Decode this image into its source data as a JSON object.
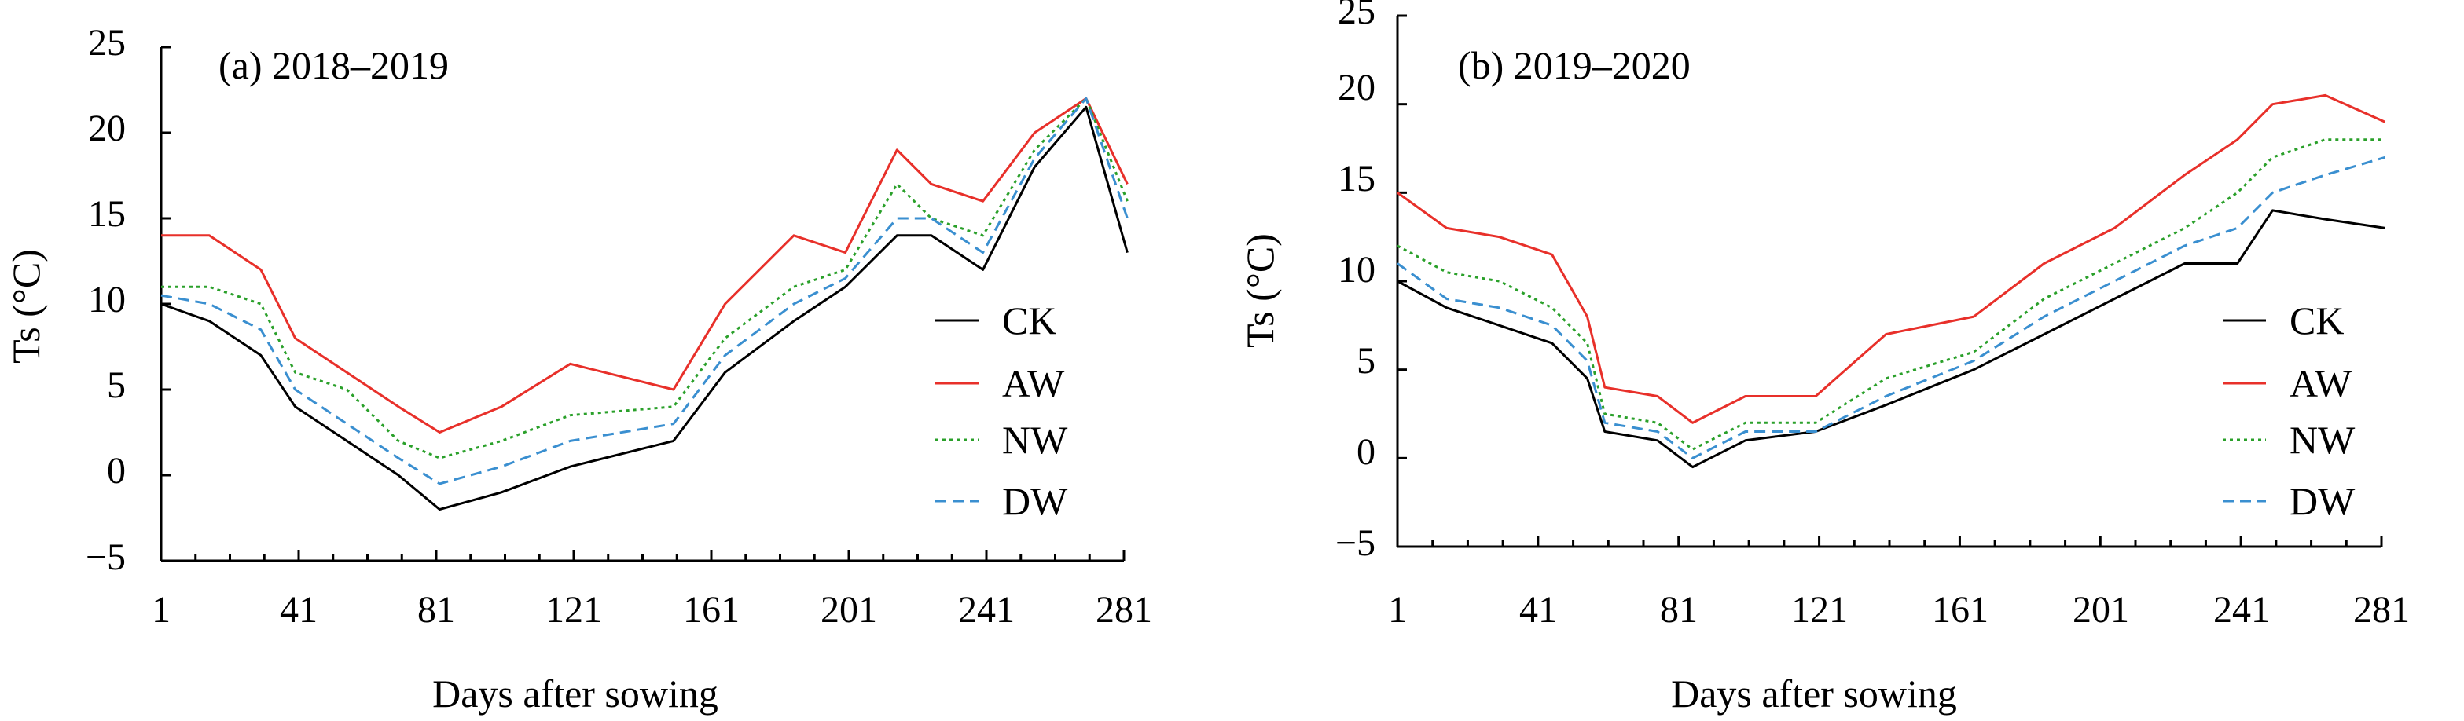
{
  "colors": {
    "CK": "#000000",
    "AW": "#e8302a",
    "NW": "#2aa02a",
    "DW": "#3a8fd0"
  },
  "chart_data": [
    {
      "type": "line",
      "title": "(a) 2018–2019",
      "xlabel": "Days after sowing",
      "ylabel": "Ts (°C)",
      "xlim": [
        1,
        281
      ],
      "ylim": [
        -5,
        25
      ],
      "xticks": [
        "1",
        "41",
        "81",
        "121",
        "161",
        "201",
        "241",
        "281"
      ],
      "yticks": [
        "−5",
        "0",
        "5",
        "10",
        "15",
        "20",
        "25"
      ],
      "legend": [
        "CK",
        "AW",
        "NW",
        "DW"
      ],
      "legend_position": "right",
      "series": [
        {
          "name": "CK",
          "style": "solid",
          "x": [
            1,
            15,
            30,
            40,
            55,
            70,
            82,
            100,
            120,
            150,
            165,
            185,
            200,
            215,
            225,
            240,
            255,
            270,
            282
          ],
          "y": [
            10,
            9,
            7,
            4,
            2,
            0,
            -2,
            -1,
            0.5,
            2,
            6,
            9,
            11,
            14,
            14,
            12,
            18,
            21.5,
            13
          ]
        },
        {
          "name": "AW",
          "style": "solid",
          "x": [
            1,
            15,
            30,
            40,
            55,
            70,
            82,
            100,
            120,
            150,
            165,
            185,
            200,
            215,
            225,
            240,
            255,
            270,
            282
          ],
          "y": [
            14,
            14,
            12,
            8,
            6,
            4,
            2.5,
            4,
            6.5,
            5,
            10,
            14,
            13,
            19,
            17,
            16,
            20,
            22,
            17
          ]
        },
        {
          "name": "NW",
          "style": "dotted",
          "x": [
            1,
            15,
            30,
            40,
            55,
            70,
            82,
            100,
            120,
            150,
            165,
            185,
            200,
            215,
            225,
            240,
            255,
            270,
            282
          ],
          "y": [
            11,
            11,
            10,
            6,
            5,
            2,
            1,
            2,
            3.5,
            4,
            8,
            11,
            12,
            17,
            15,
            14,
            19,
            22,
            16
          ]
        },
        {
          "name": "DW",
          "style": "dashed",
          "x": [
            1,
            15,
            30,
            40,
            55,
            70,
            82,
            100,
            120,
            150,
            165,
            185,
            200,
            215,
            225,
            240,
            255,
            270,
            282
          ],
          "y": [
            10.5,
            10,
            8.5,
            5,
            3,
            1,
            -0.5,
            0.5,
            2,
            3,
            7,
            10,
            11.5,
            15,
            15,
            13,
            18.5,
            22,
            15
          ]
        }
      ]
    },
    {
      "type": "line",
      "title": "(b) 2019–2020",
      "xlabel": "Days after sowing",
      "ylabel": "Ts (°C)",
      "xlim": [
        1,
        281
      ],
      "ylim": [
        -5,
        25
      ],
      "xticks": [
        "1",
        "41",
        "81",
        "121",
        "161",
        "201",
        "241",
        "281"
      ],
      "yticks": [
        "−5",
        "0",
        "5",
        "10",
        "15",
        "20",
        "25"
      ],
      "legend": [
        "CK",
        "AW",
        "NW",
        "DW"
      ],
      "legend_position": "right",
      "series": [
        {
          "name": "CK",
          "style": "solid",
          "x": [
            1,
            15,
            30,
            45,
            55,
            60,
            75,
            85,
            100,
            120,
            140,
            165,
            185,
            205,
            225,
            240,
            250,
            265,
            282
          ],
          "y": [
            10,
            8.5,
            7.5,
            6.5,
            4.5,
            1.5,
            1,
            -0.5,
            1,
            1.5,
            3,
            5,
            7,
            9,
            11,
            11,
            14,
            13.5,
            13
          ]
        },
        {
          "name": "AW",
          "style": "solid",
          "x": [
            1,
            15,
            30,
            45,
            55,
            60,
            75,
            85,
            100,
            120,
            140,
            165,
            185,
            205,
            225,
            240,
            250,
            265,
            282
          ],
          "y": [
            15,
            13,
            12.5,
            11.5,
            8,
            4,
            3.5,
            2,
            3.5,
            3.5,
            7,
            8,
            11,
            13,
            16,
            18,
            20,
            20.5,
            19
          ]
        },
        {
          "name": "NW",
          "style": "dotted",
          "x": [
            1,
            15,
            30,
            45,
            55,
            60,
            75,
            85,
            100,
            120,
            140,
            165,
            185,
            205,
            225,
            240,
            250,
            265,
            282
          ],
          "y": [
            12,
            10.5,
            10,
            8.5,
            6.5,
            2.5,
            2,
            0.5,
            2,
            2,
            4.5,
            6,
            9,
            11,
            13,
            15,
            17,
            18,
            18
          ]
        },
        {
          "name": "DW",
          "style": "dashed",
          "x": [
            1,
            15,
            30,
            45,
            55,
            60,
            75,
            85,
            100,
            120,
            140,
            165,
            185,
            205,
            225,
            240,
            250,
            265,
            282
          ],
          "y": [
            11,
            9,
            8.5,
            7.5,
            5.5,
            2,
            1.5,
            0,
            1.5,
            1.5,
            3.5,
            5.5,
            8,
            10,
            12,
            13,
            15,
            16,
            17
          ]
        }
      ]
    }
  ]
}
